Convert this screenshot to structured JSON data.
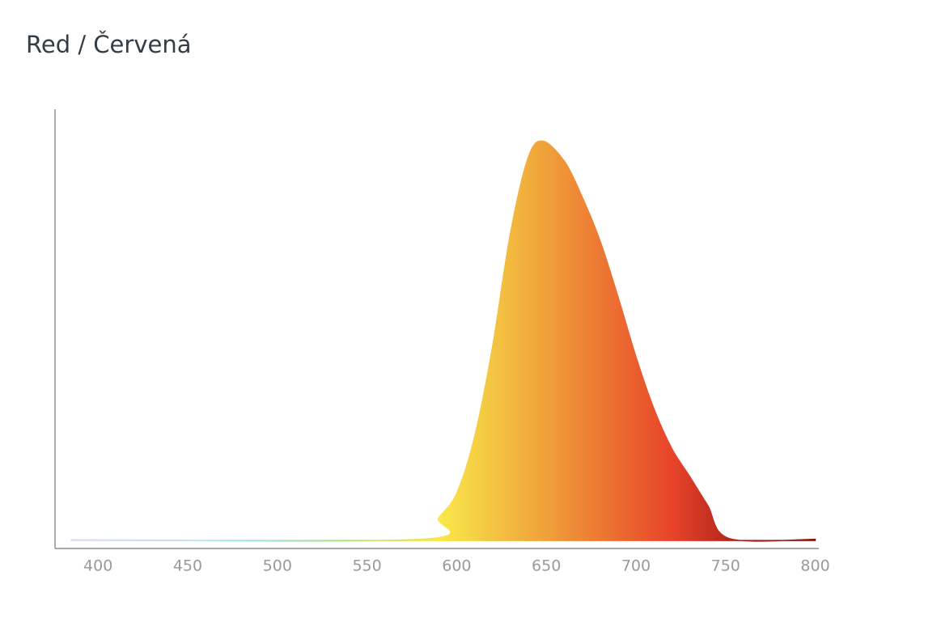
{
  "chart_data": {
    "type": "area",
    "title": "Red / Červená",
    "x": [
      385,
      580,
      590,
      600,
      610,
      620,
      630,
      640,
      648,
      660,
      670,
      680,
      690,
      700,
      710,
      720,
      730,
      740,
      752,
      800
    ],
    "values": [
      0.2,
      0.3,
      5.7,
      11.8,
      26,
      48.5,
      77,
      96,
      100,
      95,
      86,
      75,
      61,
      46,
      33,
      23,
      16,
      8.8,
      0.5,
      0.3
    ],
    "xlim": [
      376,
      802
    ],
    "ylim": [
      -2,
      108
    ],
    "xticks": [
      400,
      450,
      500,
      550,
      600,
      650,
      700,
      750,
      800
    ],
    "grid": false,
    "gradient": [
      {
        "x": 385,
        "color": "#e6dcf2"
      },
      {
        "x": 480,
        "color": "#9ee0e8"
      },
      {
        "x": 540,
        "color": "#a8e07a"
      },
      {
        "x": 590,
        "color": "#f9e94a"
      },
      {
        "x": 650,
        "color": "#f0a03a"
      },
      {
        "x": 720,
        "color": "#e8442a"
      },
      {
        "x": 760,
        "color": "#a8201a"
      },
      {
        "x": 800,
        "color": "#8a1a10"
      }
    ]
  }
}
